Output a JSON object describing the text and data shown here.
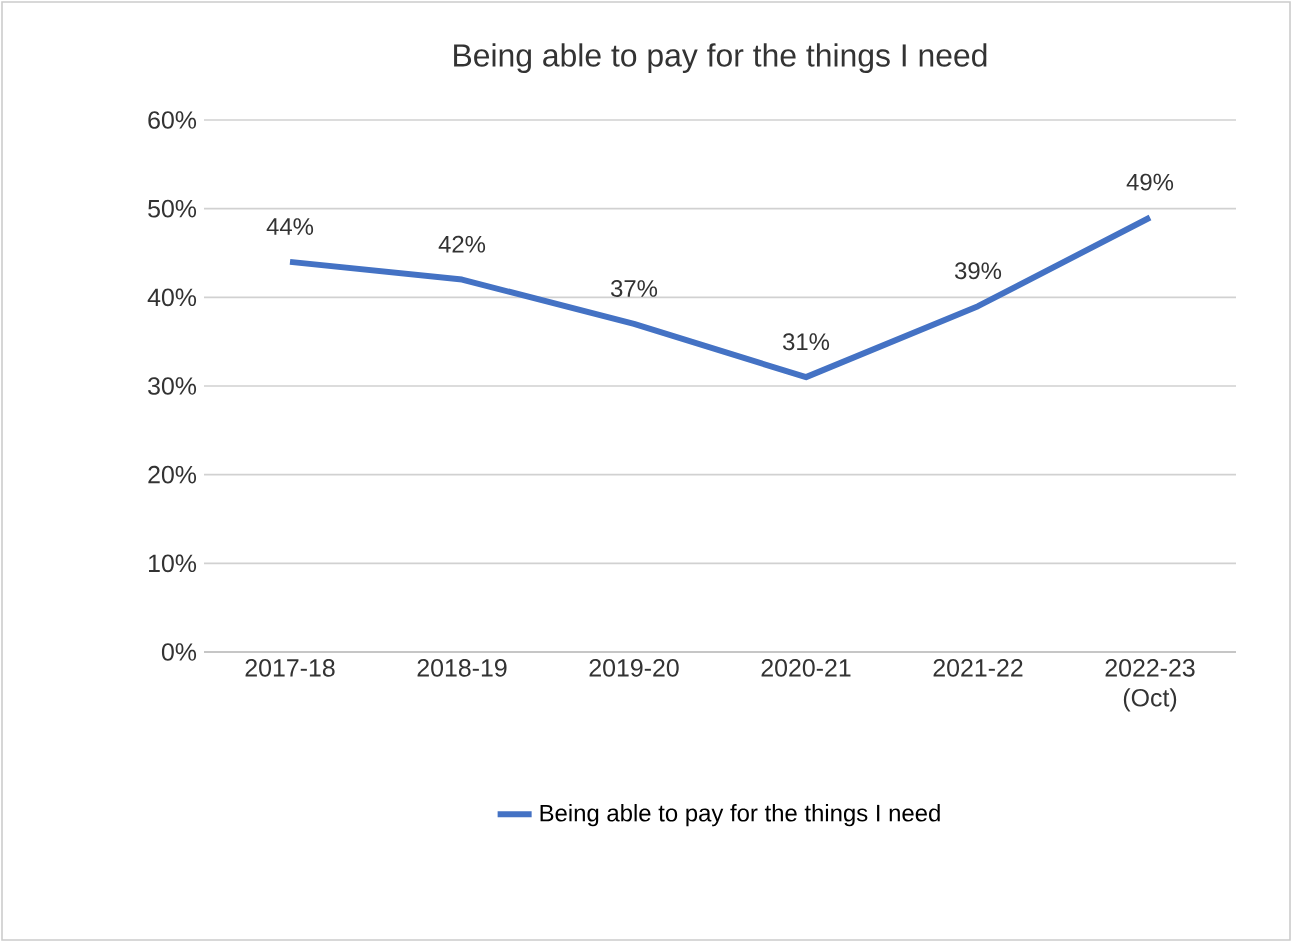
{
  "chart_data": {
    "type": "line",
    "title": "Being able to pay for the things I need",
    "categories": [
      "2017-18",
      "2018-19",
      "2019-20",
      "2020-21",
      "2021-22",
      "2022-23 (Oct)"
    ],
    "series": [
      {
        "name": "Being able to pay for the things I need",
        "color": "#4472c4",
        "values": [
          44,
          42,
          37,
          31,
          39,
          49
        ],
        "value_labels": [
          "44%",
          "42%",
          "37%",
          "31%",
          "39%",
          "49%"
        ]
      }
    ],
    "ylim": [
      0,
      60
    ],
    "yticks": [
      {
        "value": 0,
        "label": "0%"
      },
      {
        "value": 10,
        "label": "10%"
      },
      {
        "value": 20,
        "label": "20%"
      },
      {
        "value": 30,
        "label": "30%"
      },
      {
        "value": 40,
        "label": "40%"
      },
      {
        "value": 50,
        "label": "50%"
      },
      {
        "value": 60,
        "label": "60%"
      }
    ],
    "grid": "y",
    "legend": "bottom"
  }
}
